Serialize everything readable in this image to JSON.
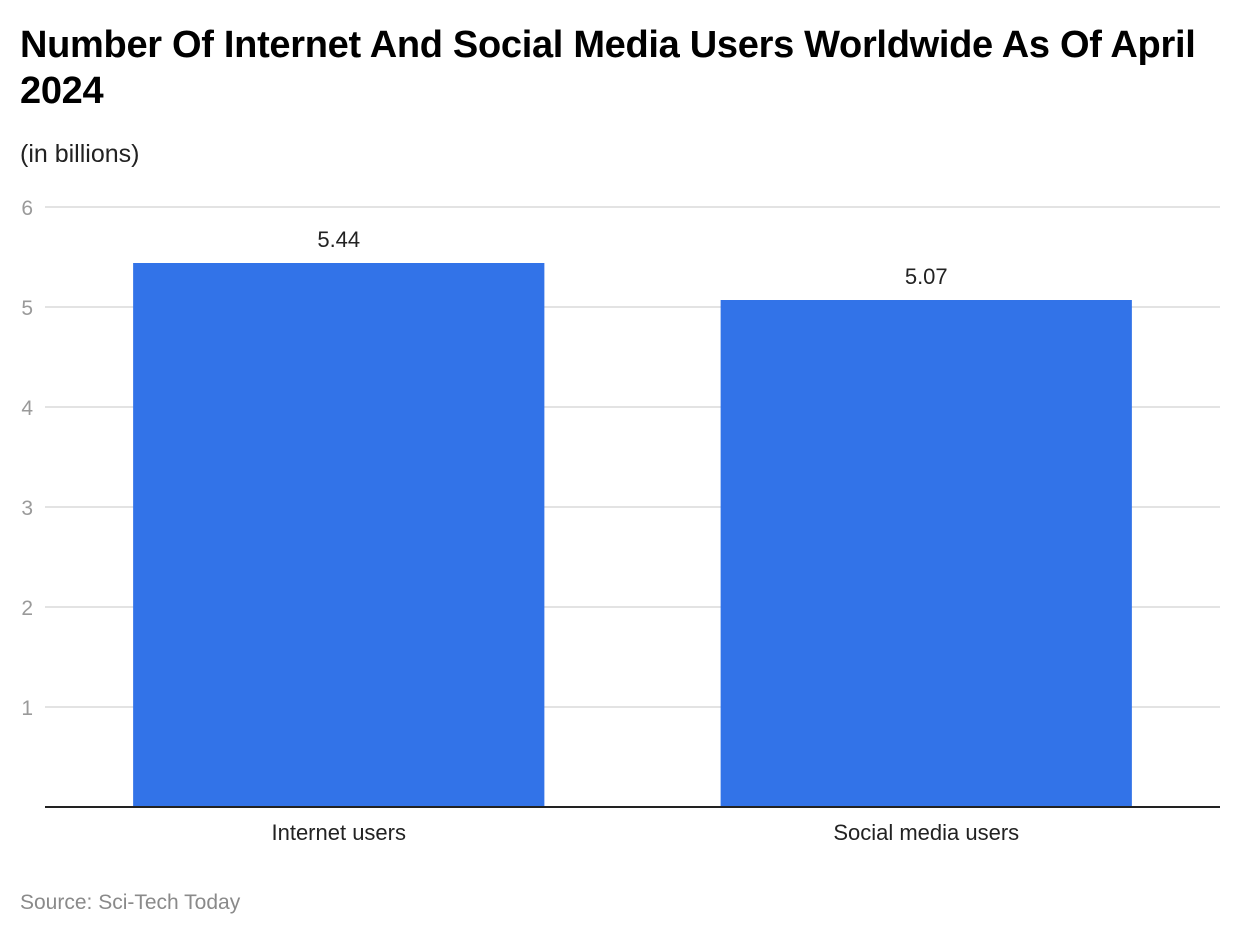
{
  "chart_data": {
    "type": "bar",
    "title": "Number Of Internet And Social Media Users Worldwide As Of April 2024",
    "subtitle": "(in billions)",
    "categories": [
      "Internet users",
      "Social media users"
    ],
    "values": [
      5.44,
      5.07
    ],
    "value_labels": [
      "5.44",
      "5.07"
    ],
    "xlabel": "",
    "ylabel": "",
    "ylim": [
      0,
      6
    ],
    "yticks": [
      1,
      2,
      3,
      4,
      5,
      6
    ],
    "grid": true,
    "legend": "none",
    "bar_color": "#3273e8",
    "source": "Source: Sci-Tech Today"
  }
}
